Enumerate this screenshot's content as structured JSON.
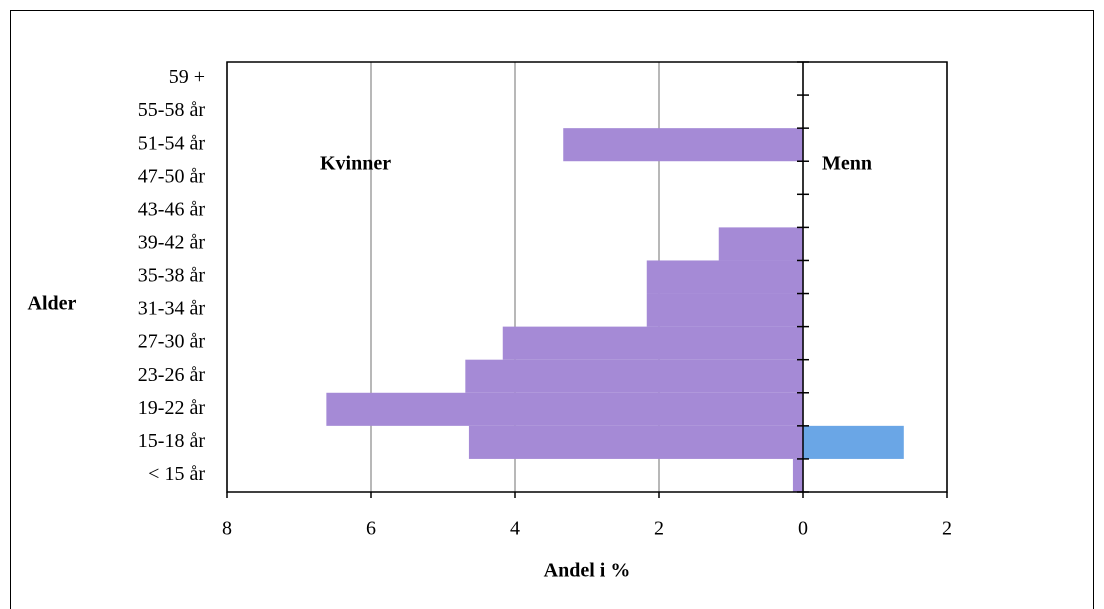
{
  "chart_data": {
    "type": "bar",
    "orientation": "horizontal",
    "x_label": "Andel i %",
    "y_label": "Alder",
    "categories": [
      "< 15 år",
      "15-18 år",
      "19-22 år",
      "23-26 år",
      "27-30 år",
      "31-34 år",
      "35-38 år",
      "39-42 år",
      "43-46 år",
      "47-50 år",
      "51-54 år",
      "55-58 år",
      "59 +"
    ],
    "series": [
      {
        "name": "Kvinner",
        "color": "#a58ad6",
        "values": [
          -0.14,
          -4.64,
          -6.62,
          -4.69,
          -4.17,
          -2.17,
          -2.17,
          -1.17,
          0,
          0,
          -3.33,
          0,
          0
        ]
      },
      {
        "name": "Menn",
        "color": "#6aa6e6",
        "values": [
          0,
          1.4,
          0,
          0,
          0,
          0,
          0,
          0,
          0,
          0,
          0,
          0,
          0
        ]
      }
    ],
    "xlim": [
      -8,
      2
    ],
    "xticks": [
      {
        "value": -8,
        "label": "8"
      },
      {
        "value": -6,
        "label": "6"
      },
      {
        "value": -4,
        "label": "4"
      },
      {
        "value": -2,
        "label": "2"
      },
      0,
      2
    ],
    "grid": true
  }
}
